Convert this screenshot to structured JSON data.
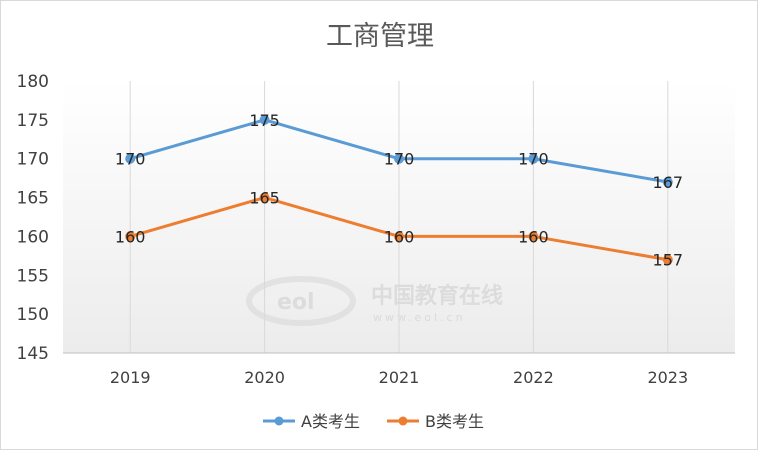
{
  "chart_data": {
    "type": "line",
    "title": "工商管理",
    "xlabel": "",
    "ylabel": "",
    "categories": [
      "2019",
      "2020",
      "2021",
      "2022",
      "2023"
    ],
    "ylim": [
      145,
      180
    ],
    "yticks": [
      145,
      150,
      155,
      160,
      165,
      170,
      175,
      180
    ],
    "grid": "vertical",
    "legend_position": "bottom",
    "series": [
      {
        "name": "A类考生",
        "values": [
          170,
          175,
          170,
          170,
          167
        ],
        "color": "#5B9BD5"
      },
      {
        "name": "B类考生",
        "values": [
          160,
          165,
          160,
          160,
          157
        ],
        "color": "#ED7D31"
      }
    ]
  },
  "watermark": {
    "logo": "eol",
    "text": "中国教育在线",
    "url": "www.eol.cn"
  }
}
